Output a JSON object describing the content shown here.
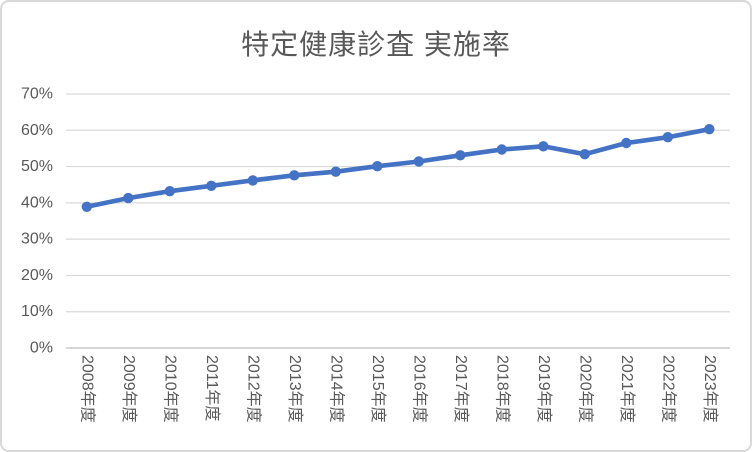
{
  "chart": {
    "colors": {
      "line": "#4472C4",
      "marker": "#4472C4",
      "gridline": "#D9D9D9",
      "axis_line": "#C9C9C9",
      "label_text": "#595959",
      "title_text": "#595959",
      "frame_border": "#D9D9D9",
      "background": "#FFFFFF"
    }
  },
  "chart_data": {
    "type": "line",
    "title": "特定健康診査 実施率",
    "categories": [
      "2008年度",
      "2009年度",
      "2010年度",
      "2011年度",
      "2012年度",
      "2013年度",
      "2014年度",
      "2015年度",
      "2016年度",
      "2017年度",
      "2018年度",
      "2019年度",
      "2020年度",
      "2021年度",
      "2022年度",
      "2023年度"
    ],
    "values": [
      38.9,
      41.3,
      43.2,
      44.7,
      46.2,
      47.6,
      48.6,
      50.1,
      51.4,
      53.1,
      54.7,
      55.6,
      53.4,
      56.5,
      58.1,
      60.3
    ],
    "value_unit": "%",
    "xlabel": "",
    "ylabel": "",
    "ylim": [
      0,
      70
    ],
    "y_ticks": [
      {
        "value": 0,
        "label": "0%"
      },
      {
        "value": 10,
        "label": "10%"
      },
      {
        "value": 20,
        "label": "20%"
      },
      {
        "value": 30,
        "label": "30%"
      },
      {
        "value": 40,
        "label": "40%"
      },
      {
        "value": 50,
        "label": "50%"
      },
      {
        "value": 60,
        "label": "60%"
      },
      {
        "value": 70,
        "label": "70%"
      }
    ],
    "grid": true,
    "legend": false,
    "marker_style": "circle",
    "x_label_rotation_deg": 90
  }
}
